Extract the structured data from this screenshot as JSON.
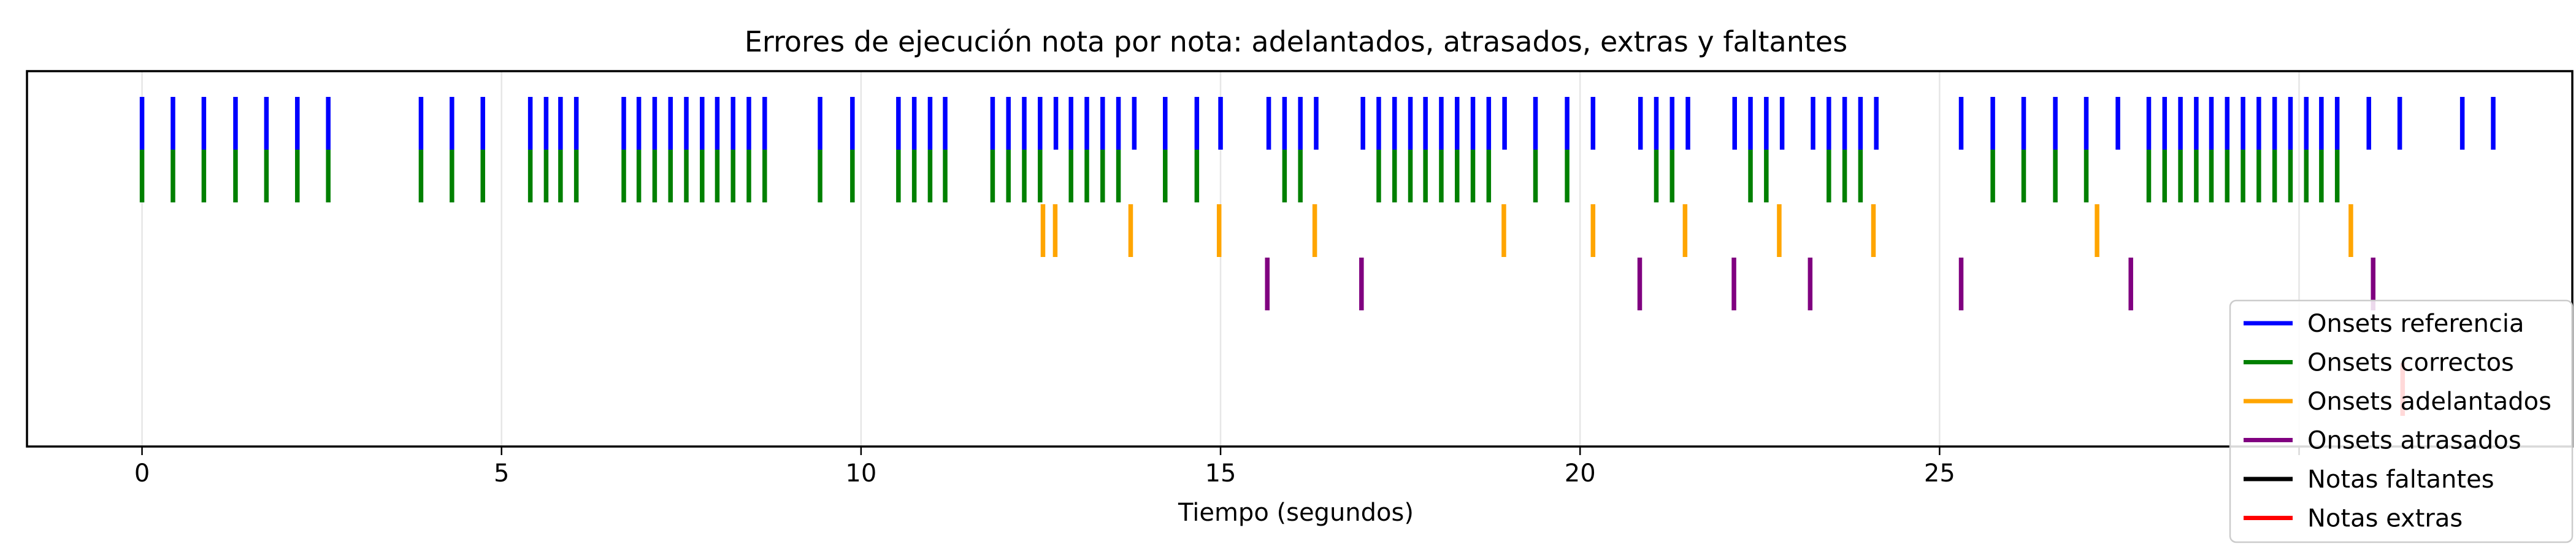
{
  "chart_data": {
    "type": "eventplot",
    "title": "Errores de ejecución nota por nota: adelantados, atrasados, extras y faltantes",
    "xlabel": "Tiempo (segundos)",
    "ylabel": "",
    "xlim": [
      -1.6,
      33.8
    ],
    "xticks": [
      0,
      5,
      10,
      15,
      20,
      25,
      30
    ],
    "xtick_labels": [
      "0",
      "5",
      "10",
      "15",
      "20",
      "25",
      ""
    ],
    "grid": "vertical",
    "legend_position": "lower-right",
    "series": [
      {
        "name": "Onsets referencia",
        "color": "#0000ff",
        "values": [
          0.0,
          0.43,
          0.86,
          1.3,
          1.73,
          2.16,
          2.59,
          3.88,
          4.31,
          4.74,
          5.4,
          5.62,
          5.82,
          6.04,
          6.7,
          6.91,
          7.13,
          7.35,
          7.57,
          7.79,
          8.0,
          8.22,
          8.44,
          8.66,
          9.43,
          9.88,
          10.52,
          10.74,
          10.96,
          11.17,
          11.83,
          12.05,
          12.27,
          12.49,
          12.71,
          12.92,
          13.14,
          13.36,
          13.58,
          13.8,
          14.23,
          14.67,
          15.0,
          15.67,
          15.89,
          16.11,
          16.33,
          16.98,
          17.2,
          17.42,
          17.64,
          17.85,
          18.07,
          18.29,
          18.51,
          18.73,
          18.95,
          19.38,
          19.82,
          20.18,
          20.84,
          21.06,
          21.28,
          21.5,
          22.15,
          22.37,
          22.59,
          22.81,
          23.24,
          23.46,
          23.68,
          23.9,
          24.12,
          25.3,
          25.74,
          26.17,
          26.61,
          27.04,
          27.48,
          27.91,
          28.13,
          28.35,
          28.57,
          28.78,
          29.0,
          29.22,
          29.44,
          29.66,
          29.88,
          30.1,
          30.31,
          30.53,
          30.97,
          31.4,
          32.27,
          32.7
        ]
      },
      {
        "name": "Onsets correctos",
        "color": "#008000",
        "values": [
          0.0,
          0.43,
          0.86,
          1.3,
          1.73,
          2.16,
          2.59,
          3.88,
          4.31,
          4.74,
          5.4,
          5.62,
          5.82,
          6.04,
          6.7,
          6.91,
          7.13,
          7.35,
          7.57,
          7.79,
          8.0,
          8.22,
          8.44,
          8.66,
          9.43,
          9.88,
          10.52,
          10.74,
          10.96,
          11.17,
          11.83,
          12.05,
          12.27,
          12.49,
          12.92,
          13.14,
          13.36,
          13.58,
          14.23,
          14.67,
          15.89,
          16.11,
          17.2,
          17.42,
          17.64,
          17.85,
          18.07,
          18.29,
          18.51,
          18.73,
          19.38,
          19.82,
          21.06,
          21.28,
          22.37,
          22.59,
          23.46,
          23.68,
          23.9,
          25.74,
          26.17,
          26.61,
          27.04,
          27.91,
          28.13,
          28.35,
          28.57,
          28.78,
          29.0,
          29.22,
          29.44,
          29.66,
          29.88,
          30.1,
          30.31,
          30.53
        ]
      },
      {
        "name": "Onsets adelantados",
        "color": "#ffa500",
        "values": [
          12.53,
          12.7,
          13.75,
          14.98,
          16.31,
          18.94,
          20.18,
          21.46,
          22.77,
          24.08,
          27.19,
          30.72
        ]
      },
      {
        "name": "Onsets atrasados",
        "color": "#800080",
        "values": [
          15.65,
          16.96,
          20.83,
          22.14,
          23.2,
          25.3,
          27.66,
          31.03
        ]
      },
      {
        "name": "Notas faltantes",
        "color": "#000000",
        "values": []
      },
      {
        "name": "Notas extras",
        "color": "#ff0000",
        "values": [
          31.44
        ]
      }
    ]
  }
}
